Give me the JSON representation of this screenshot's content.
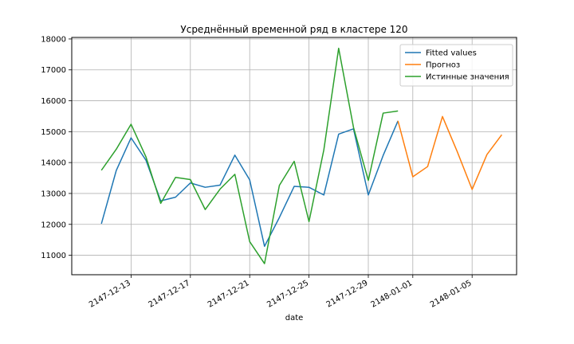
{
  "chart_data": {
    "type": "line",
    "title": "Усреднённый временной ряд в кластере 120",
    "xlabel": "date",
    "ylabel": "",
    "x_range": [
      "2147-12-09",
      "2148-01-08"
    ],
    "ylim": [
      10370,
      18050
    ],
    "grid": true,
    "legend_position": "top-right",
    "x_ticks": [
      "2147-12-13",
      "2147-12-17",
      "2147-12-21",
      "2147-12-25",
      "2147-12-29",
      "2148-01-01",
      "2148-01-05"
    ],
    "y_ticks": [
      11000,
      12000,
      13000,
      14000,
      15000,
      16000,
      17000,
      18000
    ],
    "series": [
      {
        "name": "Fitted values",
        "color": "#1f77b4",
        "x": [
          "2147-12-11",
          "2147-12-12",
          "2147-12-13",
          "2147-12-14",
          "2147-12-15",
          "2147-12-16",
          "2147-12-17",
          "2147-12-18",
          "2147-12-19",
          "2147-12-20",
          "2147-12-21",
          "2147-12-22",
          "2147-12-23",
          "2147-12-24",
          "2147-12-25",
          "2147-12-26",
          "2147-12-27",
          "2147-12-28",
          "2147-12-29",
          "2147-12-30",
          "2147-12-31"
        ],
        "y": [
          12020,
          13740,
          14800,
          14080,
          12760,
          12880,
          13340,
          13200,
          13270,
          14240,
          13440,
          11290,
          12220,
          13230,
          13200,
          12950,
          14920,
          15090,
          12950,
          14230,
          15350
        ]
      },
      {
        "name": "Прогноз",
        "color": "#ff7f0e",
        "x": [
          "2147-12-31",
          "2148-01-01",
          "2148-01-02",
          "2148-01-03",
          "2148-01-04",
          "2148-01-05",
          "2148-01-06",
          "2148-01-07"
        ],
        "y": [
          15350,
          13540,
          13870,
          15490,
          14350,
          13130,
          14260,
          14900
        ]
      },
      {
        "name": "Истинные значения",
        "color": "#2ca02c",
        "x": [
          "2147-12-11",
          "2147-12-12",
          "2147-12-13",
          "2147-12-14",
          "2147-12-15",
          "2147-12-16",
          "2147-12-17",
          "2147-12-18",
          "2147-12-19",
          "2147-12-20",
          "2147-12-21",
          "2147-12-22",
          "2147-12-23",
          "2147-12-24",
          "2147-12-25",
          "2147-12-26",
          "2147-12-27",
          "2147-12-28",
          "2147-12-29",
          "2147-12-30",
          "2147-12-31"
        ],
        "y": [
          13750,
          14430,
          15240,
          14190,
          12680,
          13520,
          13450,
          12480,
          13140,
          13620,
          11440,
          10730,
          13260,
          14040,
          12090,
          14410,
          17700,
          15140,
          13420,
          15600,
          15670
        ]
      }
    ]
  }
}
